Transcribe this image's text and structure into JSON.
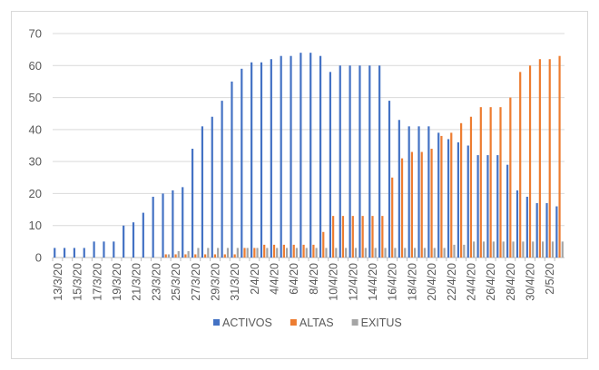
{
  "chart_data": {
    "type": "bar",
    "title": "",
    "xlabel": "",
    "ylabel": "",
    "ylim": [
      0,
      70
    ],
    "yticks": [
      0,
      10,
      20,
      30,
      40,
      50,
      60,
      70
    ],
    "grid": true,
    "legend_position": "bottom",
    "categories": [
      "13/3/20",
      "14/3/20",
      "15/3/20",
      "16/3/20",
      "17/3/20",
      "18/3/20",
      "19/3/20",
      "20/3/20",
      "21/3/20",
      "22/3/20",
      "23/3/20",
      "24/3/20",
      "25/3/20",
      "26/3/20",
      "27/3/20",
      "28/3/20",
      "29/3/20",
      "30/3/20",
      "31/3/20",
      "1/4/20",
      "2/4/20",
      "3/4/20",
      "4/4/20",
      "5/4/20",
      "6/4/20",
      "7/4/20",
      "8/4/20",
      "9/4/20",
      "10/4/20",
      "11/4/20",
      "12/4/20",
      "13/4/20",
      "14/4/20",
      "15/4/20",
      "16/4/20",
      "17/4/20",
      "18/4/20",
      "19/4/20",
      "20/4/20",
      "21/4/20",
      "22/4/20",
      "23/4/20",
      "24/4/20",
      "25/4/20",
      "26/4/20",
      "27/4/20",
      "28/4/20",
      "29/4/20",
      "30/4/20",
      "1/5/20",
      "2/5/20",
      "3/5/20"
    ],
    "tick_label_every": 2,
    "series": [
      {
        "name": "ACTIVOS",
        "color": "#4472C4",
        "values": [
          3,
          3,
          3,
          3,
          5,
          5,
          5,
          10,
          11,
          14,
          19,
          20,
          21,
          22,
          34,
          41,
          44,
          49,
          55,
          59,
          61,
          61,
          62,
          63,
          63,
          64,
          64,
          63,
          58,
          60,
          60,
          60,
          60,
          60,
          49,
          43,
          41,
          41,
          41,
          39,
          37,
          36,
          35,
          32,
          32,
          32,
          29,
          21,
          19,
          17,
          17,
          16
        ]
      },
      {
        "name": "ALTAS",
        "color": "#ED7D31",
        "values": [
          0,
          0,
          0,
          0,
          0,
          0,
          0,
          0,
          0,
          0,
          0,
          1,
          1,
          1,
          1,
          1,
          1,
          1,
          1,
          3,
          3,
          4,
          4,
          4,
          4,
          4,
          4,
          8,
          13,
          13,
          13,
          13,
          13,
          13,
          25,
          31,
          33,
          33,
          34,
          38,
          39,
          42,
          44,
          47,
          47,
          47,
          50,
          58,
          60,
          62,
          62,
          63
        ]
      },
      {
        "name": "EXITUS",
        "color": "#A5A5A5",
        "values": [
          0,
          0,
          0,
          0,
          0,
          0,
          0,
          0,
          0,
          0,
          0,
          1,
          2,
          2,
          3,
          3,
          3,
          3,
          3,
          3,
          3,
          3,
          3,
          3,
          3,
          3,
          3,
          3,
          3,
          3,
          3,
          3,
          3,
          3,
          3,
          3,
          3,
          3,
          3,
          3,
          4,
          4,
          5,
          5,
          5,
          5,
          5,
          5,
          5,
          5,
          5,
          5
        ]
      }
    ]
  }
}
